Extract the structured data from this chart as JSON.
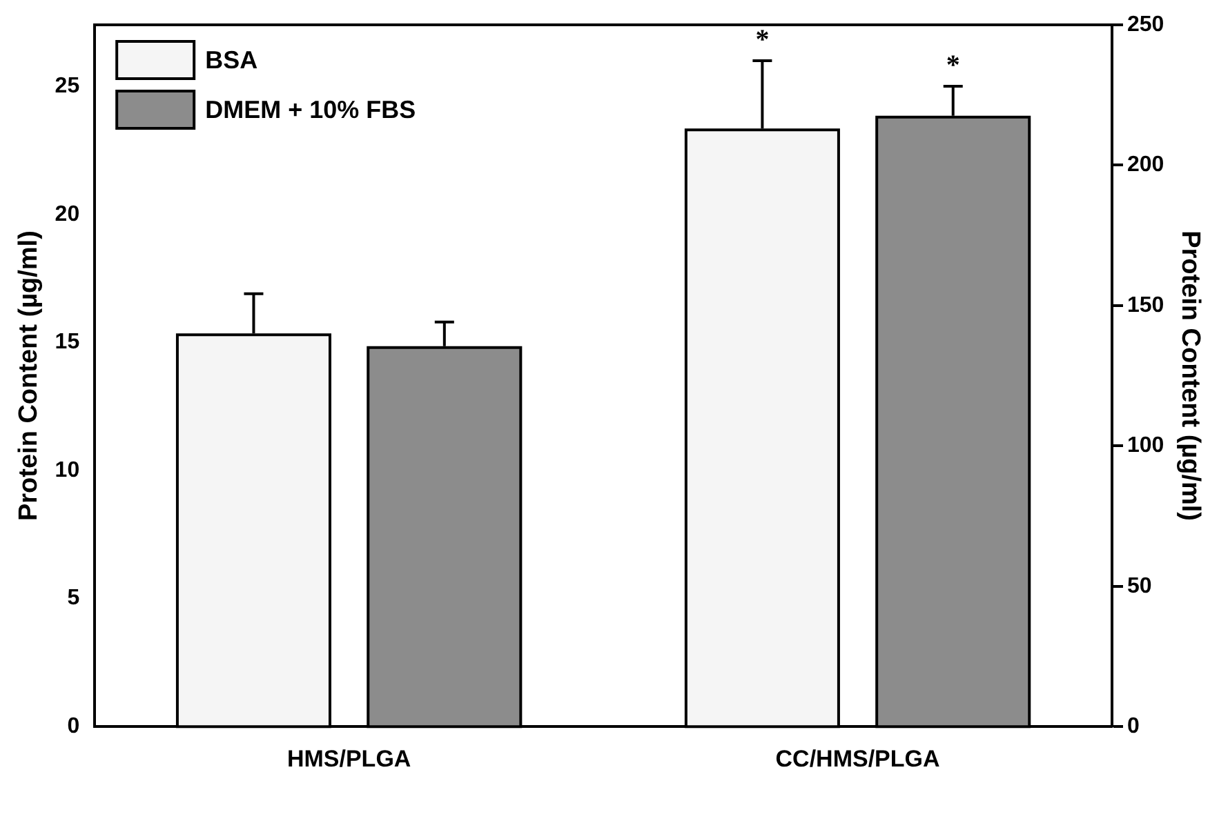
{
  "chart_data": {
    "type": "bar",
    "ylabel": "Protein Content (µg/ml)",
    "y2label": "Protein Content (µg/ml)",
    "categories": [
      "HMS/PLGA",
      "CC/HMS/PLGA"
    ],
    "series": [
      {
        "name": "BSA",
        "color": "#f5f5f5",
        "values": [
          15.3,
          23.3
        ],
        "errors": [
          [
            15.3,
            16.9
          ],
          [
            23.3,
            26.0
          ]
        ]
      },
      {
        "name": "DMEM + 10% FBS",
        "color": "#8c8c8c",
        "values": [
          14.8,
          23.8
        ],
        "errors": [
          [
            14.8,
            15.8
          ],
          [
            23.8,
            25.0
          ]
        ]
      }
    ],
    "ylim": [
      0,
      27.4
    ],
    "yticks": [
      0,
      5,
      10,
      15,
      20,
      25
    ],
    "y2lim": [
      0,
      250
    ],
    "y2ticks": [
      0,
      50,
      100,
      150,
      200,
      250
    ],
    "annotations": [
      "*",
      "*"
    ],
    "grid": false,
    "legend": "top left"
  }
}
